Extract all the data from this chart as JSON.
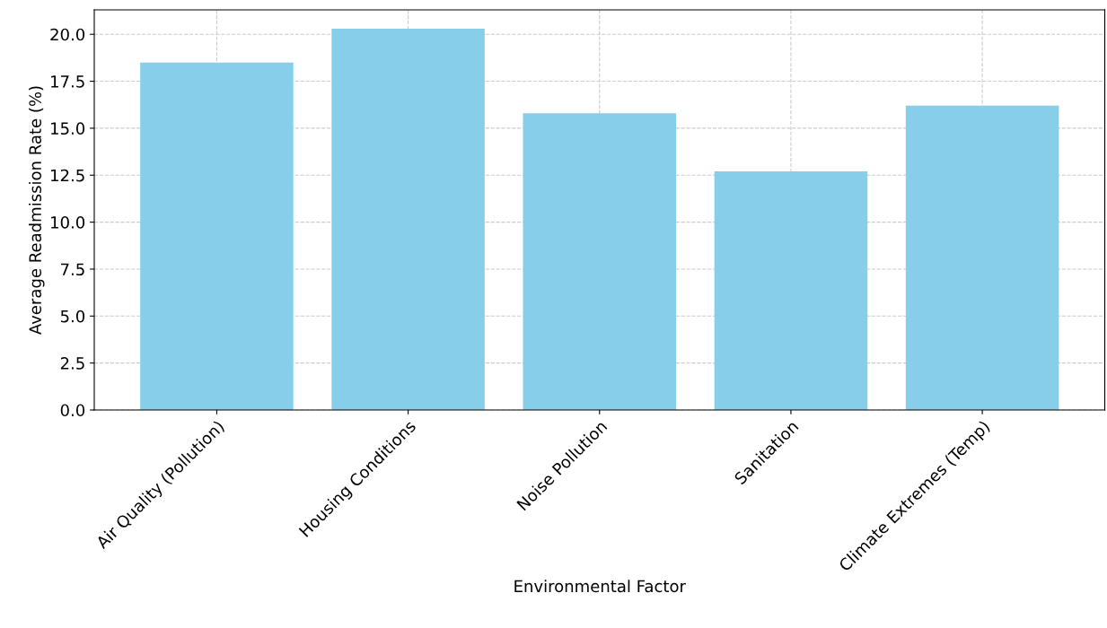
{
  "chart_data": {
    "type": "bar",
    "xlabel": "Environmental Factor",
    "ylabel": "Average Readmission Rate (%)",
    "categories": [
      "Air Quality (Pollution)",
      "Housing Conditions",
      "Noise Pollution",
      "Sanitation",
      "Climate Extremes (Temp)"
    ],
    "values": [
      18.5,
      20.3,
      15.8,
      12.7,
      16.2
    ],
    "color": "#87ceeb",
    "ylim": [
      0,
      21.3
    ],
    "yticks": [
      {
        "value": 0,
        "label": "0.0"
      },
      {
        "value": 2.5,
        "label": "2.5"
      },
      {
        "value": 5,
        "label": "5.0"
      },
      {
        "value": 7.5,
        "label": "7.5"
      },
      {
        "value": 10,
        "label": "10.0"
      },
      {
        "value": 12.5,
        "label": "12.5"
      },
      {
        "value": 15,
        "label": "15.0"
      },
      {
        "value": 17.5,
        "label": "17.5"
      },
      {
        "value": 20,
        "label": "20.0"
      }
    ],
    "grid": true,
    "line_style": "dashed"
  }
}
